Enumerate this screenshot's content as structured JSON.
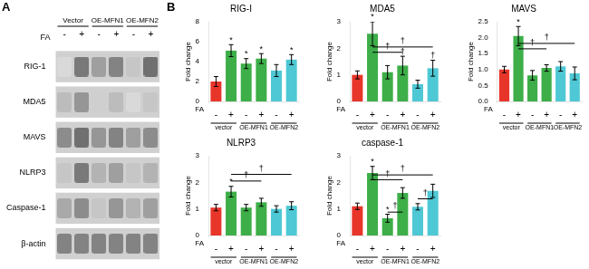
{
  "chart_data": [
    {
      "type": "heatmap",
      "annotations": [
        {
          "text": "A"
        }
      ],
      "xlabel": "FA",
      "categories": [
        "-",
        "+",
        "-",
        "+",
        "-",
        "+"
      ],
      "group_labels": [
        "Vector",
        "OE-MFN1",
        "OE-MFN2"
      ],
      "rows": [
        "RIG-1",
        "MDA5",
        "MAVS",
        "NLRP3",
        "Caspase-1",
        "β-actin"
      ],
      "cells": [
        [
          0.2,
          0.7,
          0.5,
          0.65,
          0.3,
          0.75
        ],
        [
          0.35,
          0.55,
          0.25,
          0.35,
          0.2,
          0.3
        ],
        [
          0.6,
          0.75,
          0.55,
          0.65,
          0.5,
          0.6
        ],
        [
          0.3,
          0.7,
          0.4,
          0.5,
          0.3,
          0.4
        ],
        [
          0.45,
          0.6,
          0.3,
          0.55,
          0.4,
          0.5
        ],
        [
          0.65,
          0.65,
          0.65,
          0.65,
          0.65,
          0.65
        ]
      ]
    },
    {
      "type": "bar",
      "title": "RIG-I",
      "ylabel": "Fold change",
      "xlabel": "FA",
      "categories": [
        "-",
        "+",
        "-",
        "+",
        "-",
        "+"
      ],
      "group_labels": [
        "vector",
        "OE-MFN1",
        "OE-MFN2"
      ],
      "values": [
        2.0,
        5.1,
        3.8,
        4.3,
        3.1,
        4.2
      ],
      "errors": [
        0.5,
        0.6,
        0.5,
        0.5,
        0.6,
        0.5
      ],
      "colors": [
        "#e8352a",
        "#3dae48",
        "#3dae48",
        "#3dae48",
        "#4ec8d4",
        "#4ec8d4"
      ],
      "ylim": [
        0,
        8
      ],
      "yticks": [
        0,
        2,
        4,
        6,
        8
      ],
      "grid": false,
      "annotations": [
        {
          "text": "B"
        },
        {
          "text": "*",
          "x": 1
        },
        {
          "text": "*",
          "x": 2
        },
        {
          "text": "*",
          "x": 3
        },
        {
          "text": "*",
          "x": 5
        }
      ]
    },
    {
      "type": "bar",
      "title": "MDA5",
      "ylabel": "Fold change",
      "xlabel": "FA",
      "categories": [
        "-",
        "+",
        "-",
        "+",
        "-",
        "+"
      ],
      "group_labels": [
        "vector",
        "OE-MFN1",
        "OE-MFN2"
      ],
      "values": [
        1.0,
        2.55,
        1.1,
        1.35,
        0.65,
        1.25
      ],
      "errors": [
        0.15,
        0.45,
        0.25,
        0.35,
        0.15,
        0.3
      ],
      "colors": [
        "#e8352a",
        "#3dae48",
        "#3dae48",
        "#3dae48",
        "#4ec8d4",
        "#4ec8d4"
      ],
      "ylim": [
        0,
        3
      ],
      "yticks": [
        0,
        1,
        2,
        3
      ],
      "grid": false,
      "annotations": [
        {
          "text": "*",
          "x": 1
        },
        {
          "text": "†",
          "x1": 1,
          "x2": 3,
          "y": 1.85
        },
        {
          "text": "†",
          "x1": 1,
          "x2": 5,
          "y": 2.05
        },
        {
          "text": "†",
          "x": 3
        },
        {
          "text": "†",
          "x": 5
        }
      ]
    },
    {
      "type": "bar",
      "title": "MAVS",
      "ylabel": "Fold change",
      "xlabel": "FA",
      "categories": [
        "-",
        "+",
        "-",
        "+",
        "-",
        "+"
      ],
      "group_labels": [
        "vector",
        "OE-MFN1",
        "OE-MFN2"
      ],
      "values": [
        1.0,
        2.05,
        0.82,
        1.05,
        1.1,
        0.88
      ],
      "errors": [
        0.1,
        0.3,
        0.15,
        0.1,
        0.15,
        0.2
      ],
      "colors": [
        "#e8352a",
        "#3dae48",
        "#3dae48",
        "#3dae48",
        "#4ec8d4",
        "#4ec8d4"
      ],
      "ylim": [
        0,
        2.5
      ],
      "yticks": [
        {
          "value": 0,
          "label": "0.0"
        },
        0.5,
        {
          "value": 1,
          "label": "1.0"
        },
        1.5,
        {
          "value": 2,
          "label": "2.0"
        },
        2.5
      ],
      "grid": false,
      "annotations": [
        {
          "text": "*",
          "x": 1
        },
        {
          "text": "†",
          "x1": 1,
          "x2": 3,
          "y": 1.65
        },
        {
          "text": "†",
          "x1": 1,
          "x2": 5,
          "y": 1.82
        }
      ]
    },
    {
      "type": "bar",
      "title": "NLRP3",
      "ylabel": "Fold change",
      "xlabel": "FA",
      "categories": [
        "-",
        "+",
        "-",
        "+",
        "-",
        "+"
      ],
      "group_labels": [
        "vector",
        "OE-MFN1",
        "OE-MFN2"
      ],
      "values": [
        1.05,
        1.65,
        1.05,
        1.25,
        1.0,
        1.12
      ],
      "errors": [
        0.12,
        0.2,
        0.12,
        0.15,
        0.12,
        0.15
      ],
      "colors": [
        "#e8352a",
        "#3dae48",
        "#3dae48",
        "#3dae48",
        "#4ec8d4",
        "#4ec8d4"
      ],
      "ylim": [
        0,
        3
      ],
      "yticks": [
        0,
        1,
        2,
        3
      ],
      "grid": false,
      "annotations": [
        {
          "text": "*",
          "x": 1
        },
        {
          "text": "†",
          "x1": 1,
          "x2": 3,
          "y": 2.05
        },
        {
          "text": "†",
          "x1": 1,
          "x2": 5,
          "y": 2.3
        }
      ]
    },
    {
      "type": "bar",
      "title": "caspase-1",
      "ylabel": "Fold change",
      "xlabel": "FA",
      "categories": [
        "-",
        "+",
        "-",
        "+",
        "-",
        "+"
      ],
      "group_labels": [
        "vector",
        "OE-MFN1",
        "OE-MFN2"
      ],
      "values": [
        1.1,
        2.35,
        0.65,
        1.6,
        1.08,
        1.68
      ],
      "errors": [
        0.12,
        0.25,
        0.15,
        0.2,
        0.12,
        0.25
      ],
      "colors": [
        "#e8352a",
        "#3dae48",
        "#3dae48",
        "#3dae48",
        "#4ec8d4",
        "#4ec8d4"
      ],
      "ylim": [
        0,
        3
      ],
      "yticks": [
        0,
        1,
        2,
        3
      ],
      "grid": false,
      "annotations": [
        {
          "text": "*",
          "x": 1
        },
        {
          "text": "*",
          "x": 2
        },
        {
          "text": "†",
          "x1": 1,
          "x2": 3,
          "y": 2.1
        },
        {
          "text": "†",
          "x1": 1,
          "x2": 5,
          "y": 2.28
        },
        {
          "text": "†",
          "x1": 2,
          "x2": 3,
          "y": 0.88
        },
        {
          "text": "†",
          "x1": 4,
          "x2": 5,
          "y": 1.38
        }
      ]
    }
  ]
}
